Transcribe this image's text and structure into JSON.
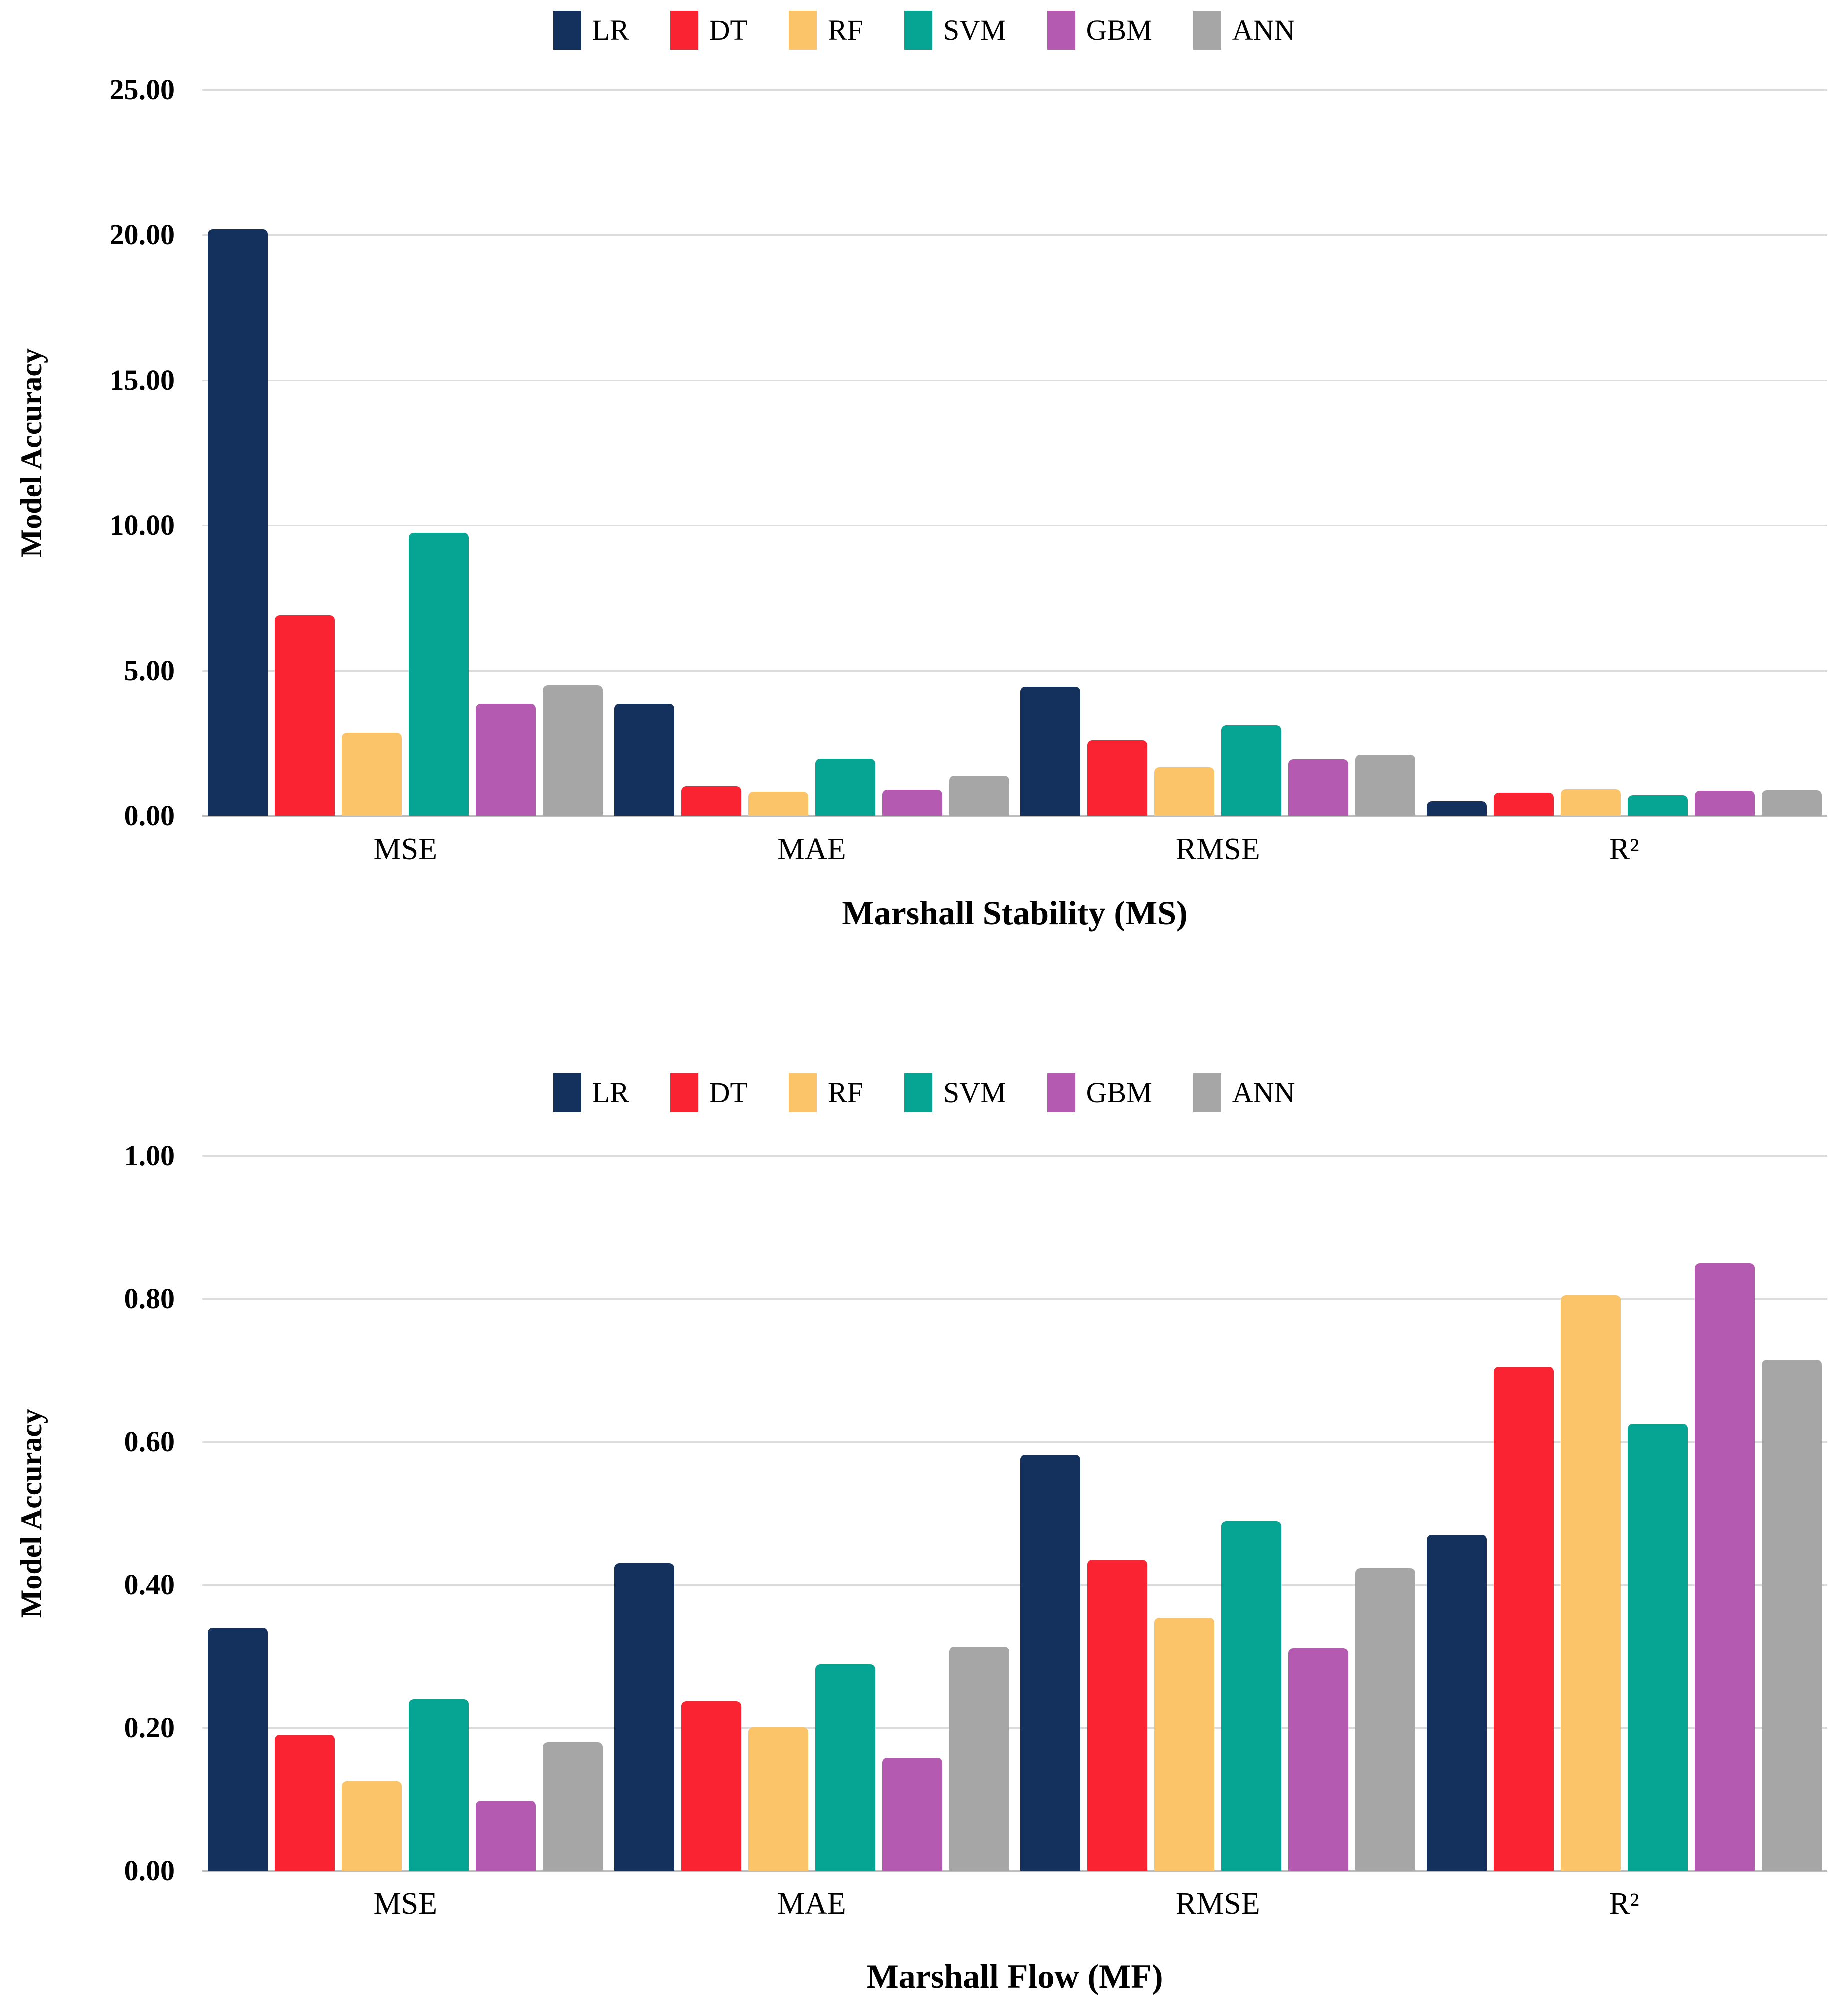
{
  "page": {
    "background": "#ffffff",
    "gridline_color": "#dcdcdc",
    "baseline_color": "#bdbdbd"
  },
  "chart_data": [
    {
      "type": "bar",
      "title": "Marshall Stability (MS)",
      "xlabel": "",
      "ylabel": "Model Accuracy",
      "categories": [
        "MSE",
        "MAE",
        "RMSE",
        "R²"
      ],
      "series": [
        {
          "name": "LR",
          "color": "#14305c",
          "values": [
            20.2,
            3.85,
            4.45,
            0.5
          ]
        },
        {
          "name": "DT",
          "color": "#fa2332",
          "values": [
            6.9,
            1.02,
            2.6,
            0.8
          ]
        },
        {
          "name": "RF",
          "color": "#fbc469",
          "values": [
            2.85,
            0.83,
            1.67,
            0.92
          ]
        },
        {
          "name": "SVM",
          "color": "#06a493",
          "values": [
            9.75,
            1.96,
            3.11,
            0.71
          ]
        },
        {
          "name": "GBM",
          "color": "#b45ab0",
          "values": [
            3.85,
            0.89,
            1.94,
            0.86
          ]
        },
        {
          "name": "ANN",
          "color": "#a6a6a6",
          "values": [
            4.5,
            1.38,
            2.1,
            0.88
          ]
        }
      ],
      "ylim": [
        0,
        25
      ],
      "yticks": [
        {
          "v": 0,
          "label": "0.00"
        },
        {
          "v": 5,
          "label": "5.00"
        },
        {
          "v": 10,
          "label": "10.00"
        },
        {
          "v": 15,
          "label": "15.00"
        },
        {
          "v": 20,
          "label": "20.00"
        },
        {
          "v": 25,
          "label": "25.00"
        }
      ],
      "grid": true,
      "legend_position": "top"
    },
    {
      "type": "bar",
      "title": "Marshall Flow (MF)",
      "xlabel": "",
      "ylabel": "Model Accuracy",
      "categories": [
        "MSE",
        "MAE",
        "RMSE",
        "R²"
      ],
      "series": [
        {
          "name": "LR",
          "color": "#14305c",
          "values": [
            0.34,
            0.43,
            0.582,
            0.47
          ]
        },
        {
          "name": "DT",
          "color": "#fa2332",
          "values": [
            0.19,
            0.237,
            0.435,
            0.705
          ]
        },
        {
          "name": "RF",
          "color": "#fbc469",
          "values": [
            0.125,
            0.201,
            0.354,
            0.805
          ]
        },
        {
          "name": "SVM",
          "color": "#06a493",
          "values": [
            0.24,
            0.289,
            0.489,
            0.625
          ]
        },
        {
          "name": "GBM",
          "color": "#b45ab0",
          "values": [
            0.098,
            0.158,
            0.311,
            0.85
          ]
        },
        {
          "name": "ANN",
          "color": "#a6a6a6",
          "values": [
            0.18,
            0.313,
            0.423,
            0.715
          ]
        }
      ],
      "ylim": [
        0,
        1
      ],
      "yticks": [
        {
          "v": 0.0,
          "label": "0.00"
        },
        {
          "v": 0.2,
          "label": "0.20"
        },
        {
          "v": 0.4,
          "label": "0.40"
        },
        {
          "v": 0.6,
          "label": "0.60"
        },
        {
          "v": 0.8,
          "label": "0.80"
        },
        {
          "v": 1.0,
          "label": "1.00"
        }
      ],
      "grid": true,
      "legend_position": "top"
    }
  ]
}
